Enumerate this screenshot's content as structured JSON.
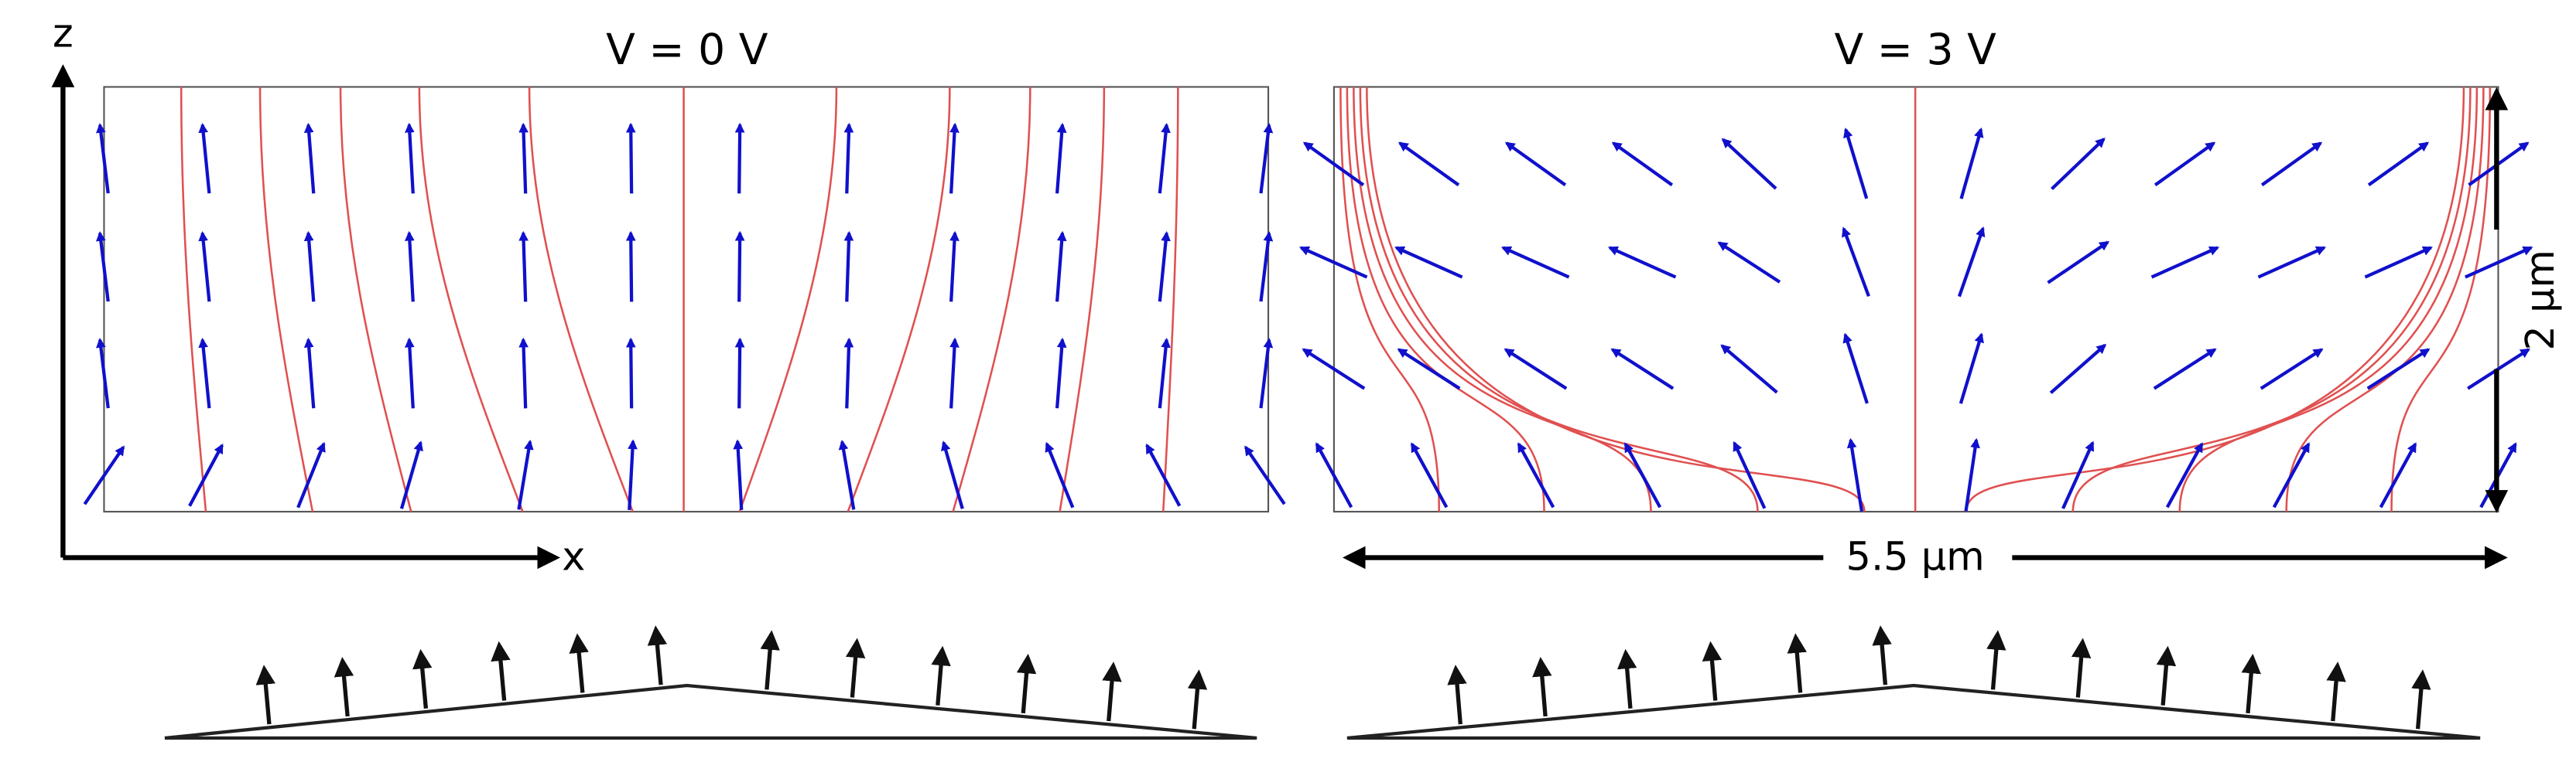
{
  "axes": {
    "z": "z",
    "x": "x"
  },
  "panels": [
    {
      "title": "V = 0 V"
    },
    {
      "title": "V = 3 V"
    }
  ],
  "scale": {
    "width": "5.5 μm",
    "height": "2 μm"
  }
}
